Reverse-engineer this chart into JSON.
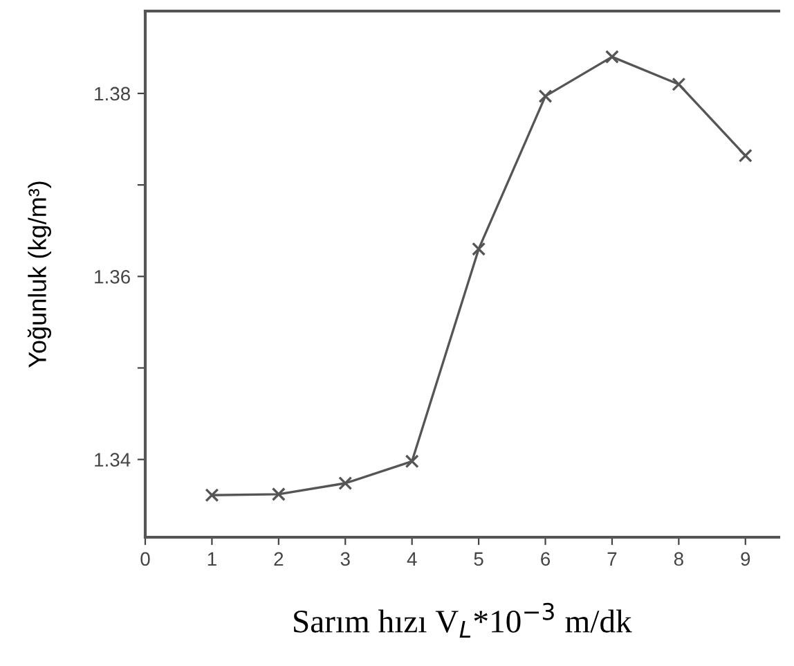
{
  "chart_data": {
    "type": "line",
    "xlabel": "Sarım hızı V$_{L}$*10$^{−3}$ m/dk",
    "ylabel": "Yoğunluk (kg/m³)",
    "x": [
      1,
      2,
      3,
      4,
      5,
      6,
      7,
      8,
      9
    ],
    "series": [
      {
        "color": "#555555",
        "values": [
          1.3361,
          1.3362,
          1.3374,
          1.3398,
          1.363,
          1.3797,
          1.384,
          1.381,
          1.3732
        ]
      }
    ],
    "marker": "cross",
    "line_style": "solid",
    "xlim": [
      0,
      9.5
    ],
    "xticks": [
      0,
      1,
      2,
      3,
      4,
      5,
      6,
      7,
      8,
      9
    ],
    "ylim": [
      1.3315,
      1.389
    ],
    "yticks": [
      {
        "value": 1.34,
        "label": "1.34"
      },
      {
        "value": 1.35,
        "label": null
      },
      {
        "value": 1.36,
        "label": "1.36"
      },
      {
        "value": 1.37,
        "label": null
      },
      {
        "value": 1.38,
        "label": "1.38"
      }
    ],
    "grid": false,
    "legend": false
  }
}
